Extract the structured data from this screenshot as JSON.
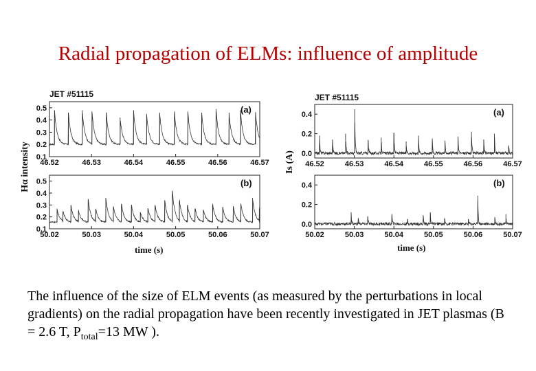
{
  "slide": {
    "title": "Radial propagation of ELMs: influence of amplitude",
    "paragraph_main": "The influence of the size of ELM events (as measured by the perturbations in local gradients) on the radial propagation have been recently investigated in JET plasmas (B = 2.6 T, P",
    "paragraph_sub": "total",
    "paragraph_end": "=13 MW )."
  },
  "left_figure": {
    "ylabel": "Hα intensity",
    "xlabel": "time (s)"
  },
  "right_figure": {
    "ylabel": "Is (A)",
    "xlabel": "time (s)"
  },
  "chart_data": [
    {
      "type": "line",
      "id": "left-a",
      "title": "JET #51115",
      "label": "(a)",
      "xlabel": "time (s)",
      "ylabel": "Hα intensity",
      "xlim": [
        46.52,
        46.57
      ],
      "ylim": [
        0.1,
        0.55
      ],
      "xticks": [
        "46.52",
        "46.53",
        "46.54",
        "46.55",
        "46.56",
        "46.57"
      ],
      "yticks": [
        "0.1",
        "0.2",
        "0.3",
        "0.4",
        "0.5"
      ],
      "baseline": 0.2,
      "noise": 0.006,
      "spikes": [
        [
          46.5212,
          0.48
        ],
        [
          46.5245,
          0.46
        ],
        [
          46.5278,
          0.48
        ],
        [
          46.5301,
          0.47
        ],
        [
          46.5335,
          0.46
        ],
        [
          46.5368,
          0.42
        ],
        [
          46.54,
          0.48
        ],
        [
          46.5431,
          0.45
        ],
        [
          46.5462,
          0.46
        ],
        [
          46.5497,
          0.47
        ],
        [
          46.5529,
          0.47
        ],
        [
          46.5562,
          0.46
        ],
        [
          46.5596,
          0.49
        ],
        [
          46.5627,
          0.46
        ],
        [
          46.5654,
          0.48
        ],
        [
          46.569,
          0.46
        ]
      ]
    },
    {
      "type": "line",
      "id": "left-b",
      "title": "",
      "label": "(b)",
      "xlabel": "time (s)",
      "ylabel": "Hα intensity",
      "xlim": [
        50.02,
        50.07
      ],
      "ylim": [
        0.1,
        0.55
      ],
      "xticks": [
        "50.02",
        "50.03",
        "50.04",
        "50.05",
        "50.06",
        "50.07"
      ],
      "yticks": [
        "0.1",
        "0.2",
        "0.3",
        "0.4",
        "0.5"
      ],
      "baseline": 0.155,
      "noise": 0.006,
      "spikes": [
        [
          50.0218,
          0.27
        ],
        [
          50.0232,
          0.24
        ],
        [
          50.0251,
          0.3
        ],
        [
          50.0269,
          0.25
        ],
        [
          50.0292,
          0.35
        ],
        [
          50.031,
          0.26
        ],
        [
          50.0334,
          0.36
        ],
        [
          50.0352,
          0.28
        ],
        [
          50.0371,
          0.31
        ],
        [
          50.0395,
          0.3
        ],
        [
          50.0416,
          0.24
        ],
        [
          50.0434,
          0.27
        ],
        [
          50.0451,
          0.3
        ],
        [
          50.0474,
          0.34
        ],
        [
          50.0492,
          0.42
        ],
        [
          50.0509,
          0.33
        ],
        [
          50.0528,
          0.3
        ],
        [
          50.0546,
          0.27
        ],
        [
          50.0566,
          0.26
        ],
        [
          50.0588,
          0.31
        ],
        [
          50.0612,
          0.28
        ],
        [
          50.0637,
          0.29
        ],
        [
          50.0655,
          0.31
        ],
        [
          50.0683,
          0.36
        ],
        [
          50.0699,
          0.27
        ]
      ]
    },
    {
      "type": "line",
      "id": "right-a",
      "title": "JET #51115",
      "label": "(a)",
      "xlabel": "time (s)",
      "ylabel": "Is (A)",
      "xlim": [
        46.52,
        46.57
      ],
      "ylim": [
        -0.05,
        0.5
      ],
      "xticks": [
        "46.52",
        "46.53",
        "46.54",
        "46.55",
        "46.56",
        "46.57"
      ],
      "yticks": [
        "0.0",
        "0.2",
        "0.4"
      ],
      "baseline": 0.0,
      "noise": 0.015,
      "spikes": [
        [
          46.5212,
          0.18
        ],
        [
          46.5245,
          0.14
        ],
        [
          46.5278,
          0.2
        ],
        [
          46.5301,
          0.45
        ],
        [
          46.5335,
          0.13
        ],
        [
          46.5368,
          0.16
        ],
        [
          46.54,
          0.21
        ],
        [
          46.5431,
          0.12
        ],
        [
          46.5462,
          0.18
        ],
        [
          46.5497,
          0.15
        ],
        [
          46.5529,
          0.13
        ],
        [
          46.5562,
          0.17
        ],
        [
          46.5596,
          0.22
        ],
        [
          46.5627,
          0.14
        ],
        [
          46.5654,
          0.2
        ],
        [
          46.569,
          0.08
        ]
      ]
    },
    {
      "type": "line",
      "id": "right-b",
      "title": "",
      "label": "(b)",
      "xlabel": "time (s)",
      "ylabel": "Is (A)",
      "xlim": [
        50.02,
        50.07
      ],
      "ylim": [
        -0.05,
        0.5
      ],
      "xticks": [
        "50.02",
        "50.03",
        "50.04",
        "50.05",
        "50.06",
        "50.07"
      ],
      "yticks": [
        "0.0",
        "0.2",
        "0.4"
      ],
      "baseline": 0.0,
      "noise": 0.015,
      "spikes": [
        [
          50.0292,
          0.12
        ],
        [
          50.031,
          0.06
        ],
        [
          50.0334,
          0.08
        ],
        [
          50.0395,
          0.1
        ],
        [
          50.0434,
          0.05
        ],
        [
          50.0474,
          0.09
        ],
        [
          50.0492,
          0.12
        ],
        [
          50.0528,
          0.06
        ],
        [
          50.0588,
          0.05
        ],
        [
          50.0612,
          0.29
        ],
        [
          50.0655,
          0.07
        ],
        [
          50.0683,
          0.1
        ]
      ]
    }
  ]
}
